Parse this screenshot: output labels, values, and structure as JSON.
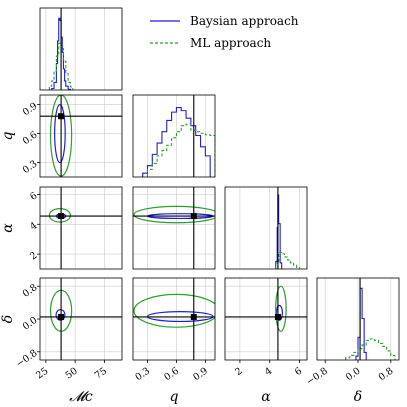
{
  "chart_data": {
    "type": "corner",
    "parameters": [
      {
        "name": "mc",
        "label": "𝓜c",
        "range": [
          20,
          90
        ],
        "ticks": [
          25,
          50,
          75
        ],
        "tick_labels": [
          "25",
          "50",
          "75"
        ],
        "truth": 38
      },
      {
        "name": "q",
        "label": "q",
        "range": [
          0.15,
          1.0
        ],
        "ticks": [
          0.3,
          0.6,
          0.9
        ],
        "tick_labels": [
          "0.3",
          "0.6",
          "0.9"
        ],
        "truth": 0.78
      },
      {
        "name": "alpha",
        "label": "α",
        "range": [
          1.0,
          6.5
        ],
        "ticks": [
          2,
          4,
          6
        ],
        "tick_labels": [
          "2",
          "4",
          "6"
        ],
        "truth": 4.55
      },
      {
        "name": "delta",
        "label": "δ",
        "range": [
          -1.0,
          1.0
        ],
        "ticks": [
          -0.8,
          0.0,
          0.8
        ],
        "tick_labels": [
          "−0.8",
          "0.0",
          "0.8"
        ],
        "truth": 0.05
      }
    ],
    "series": [
      {
        "name": "Baysian approach",
        "color": "#1f1fd6",
        "style": "solid",
        "hist": {
          "mc": {
            "bins": [
              30,
              32,
              34,
              35,
              36,
              37,
              38,
              39,
              40,
              41,
              42,
              44,
              46
            ],
            "counts": [
              0.02,
              0.1,
              0.35,
              0.65,
              0.95,
              0.92,
              0.7,
              0.5,
              0.28,
              0.12,
              0.05,
              0.01
            ]
          },
          "q": {
            "bins": [
              0.25,
              0.3,
              0.35,
              0.4,
              0.45,
              0.5,
              0.55,
              0.6,
              0.65,
              0.7,
              0.75,
              0.8,
              0.85,
              0.9,
              0.95
            ],
            "counts": [
              0.05,
              0.15,
              0.3,
              0.45,
              0.6,
              0.75,
              0.86,
              0.92,
              0.88,
              0.78,
              0.68,
              0.55,
              0.4,
              0.28
            ]
          },
          "alpha": {
            "bins": [
              4.4,
              4.5,
              4.55,
              4.6,
              4.7,
              4.8
            ],
            "counts": [
              0.1,
              0.55,
              0.98,
              0.6,
              0.08
            ]
          },
          "delta": {
            "bins": [
              -0.05,
              0.0,
              0.05,
              0.1,
              0.15,
              0.2
            ],
            "counts": [
              0.05,
              0.3,
              0.95,
              0.55,
              0.1
            ]
          }
        },
        "contours": {
          "mc-q": {
            "center": [
              37,
              0.6
            ],
            "rx": 4.5,
            "ry": 0.3
          },
          "mc-alpha": {
            "center": [
              38,
              4.55
            ],
            "rx": 4,
            "ry": 0.15
          },
          "q-alpha": {
            "center": [
              0.64,
              4.55
            ],
            "rx": 0.34,
            "ry": 0.16
          },
          "mc-delta": {
            "center": [
              37.5,
              0.1
            ],
            "rx": 3.8,
            "ry": 0.13
          },
          "q-delta": {
            "center": [
              0.64,
              0.06
            ],
            "rx": 0.34,
            "ry": 0.12
          },
          "alpha-delta": {
            "center": [
              4.65,
              0.15
            ],
            "rx": 0.2,
            "ry": 0.18
          }
        }
      },
      {
        "name": "ML approach",
        "color": "#2e9e2e",
        "style": "dashed",
        "hist": {
          "mc": {
            "bins": [
              28,
              30,
              32,
              34,
              36,
              38,
              40,
              42,
              44,
              46,
              48
            ],
            "counts": [
              0.05,
              0.12,
              0.25,
              0.45,
              0.62,
              0.55,
              0.38,
              0.22,
              0.1,
              0.04
            ]
          },
          "q": {
            "bins": [
              0.3,
              0.35,
              0.4,
              0.45,
              0.5,
              0.55,
              0.6,
              0.65,
              0.7,
              0.75,
              0.8,
              0.85,
              0.9,
              0.95,
              1.0
            ],
            "counts": [
              0.1,
              0.18,
              0.28,
              0.35,
              0.42,
              0.52,
              0.6,
              0.68,
              0.7,
              0.62,
              0.6,
              0.58,
              0.56,
              0.55
            ]
          },
          "alpha": {
            "bins": [
              4.4,
              4.6,
              4.8,
              5.0,
              5.2,
              5.4,
              5.6,
              5.8,
              6.0
            ],
            "counts": [
              0.08,
              0.22,
              0.2,
              0.16,
              0.12,
              0.08,
              0.05,
              0.02
            ]
          },
          "delta": {
            "bins": [
              -0.3,
              -0.2,
              -0.1,
              0.0,
              0.1,
              0.2,
              0.3,
              0.4,
              0.5,
              0.6,
              0.7,
              0.8,
              0.9
            ],
            "counts": [
              0.03,
              0.06,
              0.1,
              0.15,
              0.2,
              0.26,
              0.28,
              0.26,
              0.22,
              0.18,
              0.12,
              0.06
            ]
          }
        },
        "contours": {
          "mc-q": {
            "center": [
              38,
              0.58
            ],
            "rx": 9,
            "ry": 0.42
          },
          "mc-alpha": {
            "center": [
              37,
              4.6
            ],
            "rx": 9,
            "ry": 0.45
          },
          "q-alpha": {
            "center": [
              0.6,
              4.65
            ],
            "rx": 0.44,
            "ry": 0.55
          },
          "mc-delta": {
            "center": [
              38,
              0.2
            ],
            "rx": 9,
            "ry": 0.5
          },
          "q-delta": {
            "center": [
              0.6,
              0.2
            ],
            "rx": 0.44,
            "ry": 0.4
          },
          "alpha-delta": {
            "center": [
              4.75,
              0.25
            ],
            "rx": 0.35,
            "ry": 0.55
          }
        }
      }
    ],
    "legend": "top-right",
    "grid": true
  }
}
